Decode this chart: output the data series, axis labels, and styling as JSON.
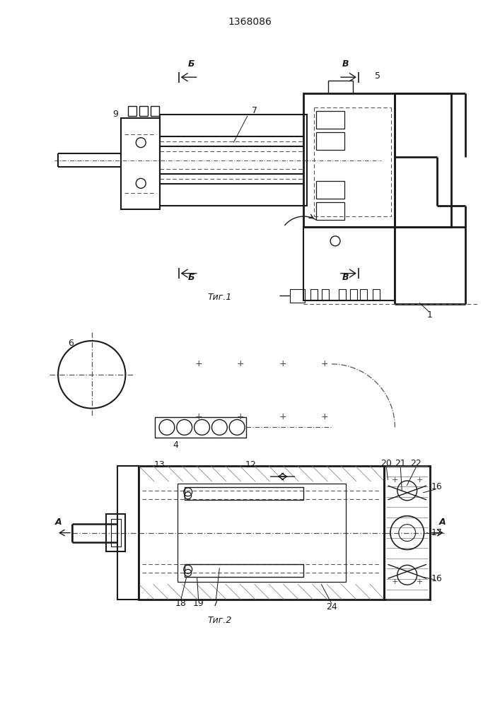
{
  "title": "1368086",
  "bg_color": "#ffffff",
  "lc": "#1a1a1a",
  "dc": "#555555",
  "fig1_caption": "Τиг.1",
  "fig2_caption": "Τиг.2",
  "label_B_top": "Б",
  "label_V_top": "В",
  "label_A": "А"
}
